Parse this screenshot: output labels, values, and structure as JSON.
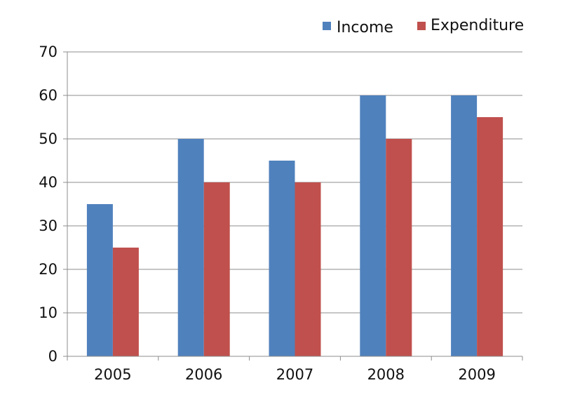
{
  "chart_data": {
    "type": "bar",
    "categories": [
      "2005",
      "2006",
      "2007",
      "2008",
      "2009"
    ],
    "series": [
      {
        "name": "Income",
        "values": [
          35,
          50,
          45,
          60,
          60
        ],
        "color": "#4F81BD"
      },
      {
        "name": "Expenditure",
        "values": [
          25,
          40,
          40,
          50,
          55
        ],
        "color": "#C0504D"
      }
    ],
    "ylim": [
      0,
      70
    ],
    "yticks": [
      0,
      10,
      20,
      30,
      40,
      50,
      60,
      70
    ],
    "grid": true,
    "legend": "top-right",
    "title": "",
    "xlabel": "",
    "ylabel": ""
  }
}
